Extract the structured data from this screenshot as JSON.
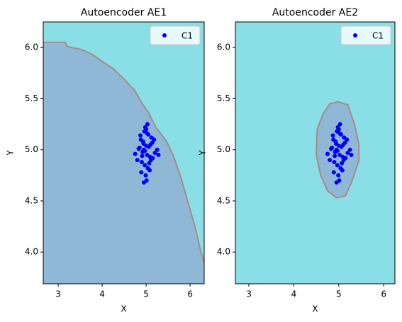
{
  "chart_data": [
    {
      "type": "scatter",
      "title": "Autoencoder AE1",
      "x_label": "X",
      "y_label": "Y",
      "xlim": [
        2.66,
        6.32
      ],
      "ylim": [
        3.69,
        6.25
      ],
      "xticks": [
        3,
        4,
        5,
        6
      ],
      "yticks": [
        {
          "value": 4,
          "label": "4.0"
        },
        4.5,
        {
          "value": 5,
          "label": "5.0"
        },
        5.5,
        {
          "value": 6,
          "label": "6.0"
        }
      ],
      "legend": "upper right",
      "background_color": "#89dfe5",
      "region_color": "#8fb8d6",
      "boundary_color": "#a88a8a",
      "boundary": {
        "closed": false,
        "x": [
          2.66,
          3.16,
          3.21,
          3.53,
          3.69,
          3.85,
          4.01,
          4.26,
          4.5,
          4.74,
          4.9,
          5.06,
          5.22,
          5.47,
          5.63,
          5.79,
          5.95,
          6.11,
          6.24,
          6.32
        ],
        "y": [
          6.05,
          6.05,
          6.01,
          5.98,
          5.95,
          5.91,
          5.86,
          5.79,
          5.69,
          5.58,
          5.46,
          5.36,
          5.22,
          5.08,
          4.93,
          4.73,
          4.49,
          4.25,
          4.01,
          3.9
        ]
      },
      "series": [
        {
          "name": "C1",
          "color": "#0000ff",
          "x": [
            4.95,
            5.02,
            4.88,
            5.1,
            4.97,
            5.05,
            4.92,
            5.15,
            4.85,
            5.0,
            5.08,
            4.93,
            5.2,
            4.8,
            5.03,
            4.99,
            5.12,
            4.9,
            5.06,
            4.96,
            4.75,
            5.25,
            5.01,
            4.94,
            5.09,
            4.87,
            5.04,
            4.98,
            5.14,
            4.91,
            5.07,
            4.83,
            5.18,
            4.97,
            5.0,
            4.89,
            5.11,
            5.02,
            4.95,
            5.28
          ],
          "values": [
            5.0,
            4.95,
            5.1,
            5.05,
            4.85,
            5.15,
            4.98,
            4.92,
            5.02,
            5.2,
            4.8,
            5.08,
            4.97,
            4.9,
            5.25,
            4.75,
            5.12,
            4.88,
            5.03,
            5.18,
            4.96,
            5.0,
            4.7,
            5.06,
            4.93,
            5.14,
            4.82,
            5.22,
            5.07,
            4.94,
            4.87,
            5.01,
            5.1,
            4.99,
            5.04,
            4.78,
            4.9,
            5.16,
            4.68,
            4.95
          ]
        }
      ]
    },
    {
      "type": "scatter",
      "title": "Autoencoder AE2",
      "x_label": "X",
      "y_label": "Y",
      "xlim": [
        2.7,
        6.25
      ],
      "ylim": [
        3.69,
        6.25
      ],
      "xticks": [
        3,
        4,
        5,
        6
      ],
      "yticks": [
        {
          "value": 4,
          "label": "4.0"
        },
        4.5,
        {
          "value": 5,
          "label": "5.0"
        },
        5.5,
        {
          "value": 6,
          "label": "6.0"
        }
      ],
      "legend": "upper right",
      "background_color": "#89dfe5",
      "region_color": "#8fb8d6",
      "boundary_color": "#a88a8a",
      "boundary": {
        "closed": true,
        "x": [
          4.98,
          5.2,
          5.35,
          5.45,
          5.45,
          5.3,
          5.15,
          4.95,
          4.75,
          4.6,
          4.5,
          4.52,
          4.65,
          4.8
        ],
        "y": [
          5.47,
          5.44,
          5.25,
          5.05,
          4.9,
          4.7,
          4.55,
          4.53,
          4.6,
          4.75,
          4.95,
          5.2,
          5.35,
          5.45
        ]
      },
      "series": [
        {
          "name": "C1",
          "color": "#0000ff",
          "x": [
            4.95,
            5.02,
            4.88,
            5.1,
            4.97,
            5.05,
            4.92,
            5.15,
            4.85,
            5.0,
            5.08,
            4.93,
            5.2,
            4.8,
            5.03,
            4.99,
            5.12,
            4.9,
            5.06,
            4.96,
            4.75,
            5.25,
            5.01,
            4.94,
            5.09,
            4.87,
            5.04,
            4.98,
            5.14,
            4.91,
            5.07,
            4.83,
            5.18,
            4.97,
            5.0,
            4.89,
            5.11,
            5.02,
            4.95,
            5.28
          ],
          "values": [
            5.0,
            4.95,
            5.1,
            5.05,
            4.85,
            5.15,
            4.98,
            4.92,
            5.02,
            5.2,
            4.8,
            5.08,
            4.97,
            4.9,
            5.25,
            4.75,
            5.12,
            4.88,
            5.03,
            5.18,
            4.96,
            5.0,
            4.7,
            5.06,
            4.93,
            5.14,
            4.82,
            5.22,
            5.07,
            4.94,
            4.87,
            5.01,
            5.1,
            4.99,
            5.04,
            4.78,
            4.9,
            5.16,
            4.68,
            4.95
          ]
        }
      ]
    }
  ]
}
